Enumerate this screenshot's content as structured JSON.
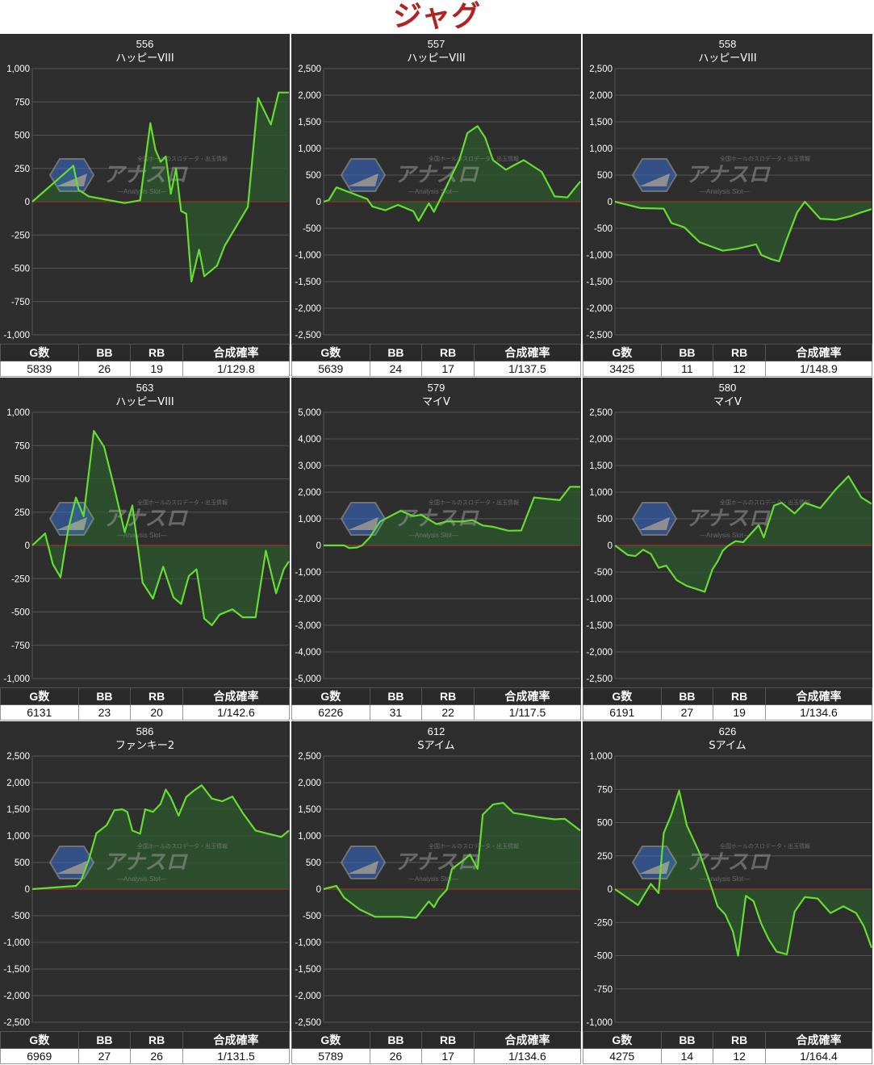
{
  "page_title": "ジャグ",
  "watermark": {
    "top": "全国ホールのスロデータ・出玉情報",
    "logo": "アナスロ",
    "sub": "—Analysis Slot—"
  },
  "colors": {
    "background": "#2e2e2e",
    "grid": "#555555",
    "line": "#66dd33",
    "fill": "#2e5a2e",
    "zero": "#cc2222",
    "title": "#b22222"
  },
  "table_headers": [
    "G数",
    "BB",
    "RB",
    "合成確率"
  ],
  "chart_data": [
    {
      "type": "line",
      "machine_no": "556",
      "model": "ハッピーVIII",
      "ylim": [
        -1000,
        1000
      ],
      "yticks": [
        1000,
        750,
        500,
        250,
        0,
        -250,
        -500,
        -750,
        -1000
      ],
      "x": [
        0,
        0.16,
        0.18,
        0.22,
        0.36,
        0.42,
        0.46,
        0.48,
        0.5,
        0.52,
        0.54,
        0.56,
        0.58,
        0.6,
        0.62,
        0.65,
        0.67,
        0.72,
        0.75,
        0.84,
        0.88,
        0.93,
        0.96,
        1.0
      ],
      "y": [
        0,
        270,
        90,
        40,
        -10,
        10,
        590,
        390,
        300,
        340,
        60,
        250,
        -70,
        -90,
        -600,
        -360,
        -560,
        -480,
        -330,
        -40,
        780,
        580,
        820,
        820
      ],
      "stats": {
        "games": "5839",
        "bb": "26",
        "rb": "19",
        "prob": "1/129.8"
      }
    },
    {
      "type": "line",
      "machine_no": "557",
      "model": "ハッピーVIII",
      "ylim": [
        -2500,
        2500
      ],
      "yticks": [
        2500,
        2000,
        1500,
        1000,
        500,
        0,
        -500,
        -1000,
        -1500,
        -2000,
        -2500
      ],
      "x": [
        0,
        0.02,
        0.05,
        0.17,
        0.19,
        0.24,
        0.29,
        0.35,
        0.37,
        0.41,
        0.43,
        0.47,
        0.53,
        0.56,
        0.6,
        0.63,
        0.66,
        0.71,
        0.74,
        0.78,
        0.85,
        0.9,
        0.95,
        1.0
      ],
      "y": [
        0,
        30,
        270,
        50,
        -90,
        -160,
        -60,
        -180,
        -360,
        -30,
        -190,
        200,
        800,
        1290,
        1420,
        1200,
        780,
        600,
        680,
        780,
        560,
        100,
        80,
        380
      ],
      "stats": {
        "games": "5639",
        "bb": "24",
        "rb": "17",
        "prob": "1/137.5"
      }
    },
    {
      "type": "line",
      "machine_no": "558",
      "model": "ハッピーVIII",
      "ylim": [
        -2500,
        2500
      ],
      "yticks": [
        2500,
        2000,
        1500,
        1000,
        500,
        0,
        -500,
        -1000,
        -1500,
        -2000,
        -2500
      ],
      "x": [
        0,
        0.1,
        0.19,
        0.22,
        0.27,
        0.33,
        0.42,
        0.48,
        0.55,
        0.57,
        0.61,
        0.64,
        0.67,
        0.68,
        0.71,
        0.74,
        0.8,
        0.86,
        0.92,
        0.96,
        1.0
      ],
      "y": [
        0,
        -120,
        -130,
        -400,
        -480,
        -760,
        -920,
        -880,
        -800,
        -1000,
        -1080,
        -1120,
        -700,
        -580,
        -200,
        0,
        -320,
        -340,
        -270,
        -200,
        -140
      ],
      "stats": {
        "games": "3425",
        "bb": "11",
        "rb": "12",
        "prob": "1/148.9"
      }
    },
    {
      "type": "line",
      "machine_no": "563",
      "model": "ハッピーVIII",
      "ylim": [
        -1000,
        1000
      ],
      "yticks": [
        1000,
        750,
        500,
        250,
        0,
        -250,
        -500,
        -750,
        -1000
      ],
      "x": [
        0,
        0.05,
        0.08,
        0.11,
        0.14,
        0.17,
        0.2,
        0.24,
        0.28,
        0.32,
        0.36,
        0.39,
        0.43,
        0.47,
        0.51,
        0.55,
        0.58,
        0.61,
        0.64,
        0.67,
        0.7,
        0.73,
        0.78,
        0.82,
        0.87,
        0.91,
        0.95,
        0.98,
        1.0
      ],
      "y": [
        0,
        90,
        -140,
        -240,
        120,
        360,
        220,
        860,
        740,
        430,
        100,
        300,
        -280,
        -400,
        -160,
        -390,
        -440,
        -230,
        -180,
        -550,
        -600,
        -520,
        -480,
        -540,
        -540,
        -40,
        -360,
        -180,
        -120
      ],
      "stats": {
        "games": "6131",
        "bb": "23",
        "rb": "20",
        "prob": "1/142.6"
      }
    },
    {
      "type": "line",
      "machine_no": "579",
      "model": "マイV",
      "ylim": [
        -5000,
        5000
      ],
      "yticks": [
        5000,
        4000,
        3000,
        2000,
        1000,
        0,
        -1000,
        -2000,
        -3000,
        -4000,
        -5000
      ],
      "x": [
        0,
        0.08,
        0.1,
        0.13,
        0.15,
        0.18,
        0.22,
        0.26,
        0.3,
        0.35,
        0.38,
        0.44,
        0.48,
        0.54,
        0.58,
        0.62,
        0.66,
        0.72,
        0.77,
        0.82,
        0.87,
        0.92,
        0.96,
        1.0
      ],
      "y": [
        0,
        0,
        -100,
        -80,
        0,
        300,
        900,
        1100,
        1300,
        1100,
        1150,
        800,
        900,
        900,
        950,
        750,
        700,
        550,
        560,
        1800,
        1750,
        1700,
        2200,
        2200
      ],
      "stats": {
        "games": "6226",
        "bb": "31",
        "rb": "22",
        "prob": "1/117.5"
      }
    },
    {
      "type": "line",
      "machine_no": "580",
      "model": "マイV",
      "ylim": [
        -2500,
        2500
      ],
      "yticks": [
        2500,
        2000,
        1500,
        1000,
        500,
        0,
        -500,
        -1000,
        -1500,
        -2000,
        -2500
      ],
      "x": [
        0,
        0.05,
        0.08,
        0.11,
        0.14,
        0.17,
        0.2,
        0.24,
        0.28,
        0.35,
        0.38,
        0.4,
        0.42,
        0.44,
        0.47,
        0.5,
        0.56,
        0.58,
        0.62,
        0.65,
        0.7,
        0.74,
        0.8,
        0.86,
        0.91,
        0.96,
        1.0
      ],
      "y": [
        0,
        -180,
        -200,
        -80,
        -160,
        -420,
        -380,
        -650,
        -760,
        -870,
        -450,
        -300,
        -100,
        -10,
        80,
        60,
        380,
        150,
        750,
        800,
        600,
        800,
        700,
        1050,
        1300,
        900,
        780
      ],
      "stats": {
        "games": "6191",
        "bb": "27",
        "rb": "19",
        "prob": "1/134.6"
      }
    },
    {
      "type": "line",
      "machine_no": "586",
      "model": "ファンキー2",
      "ylim": [
        -2500,
        2500
      ],
      "yticks": [
        2500,
        2000,
        1500,
        1000,
        500,
        0,
        -500,
        -1000,
        -1500,
        -2000,
        -2500
      ],
      "x": [
        0,
        0.17,
        0.19,
        0.22,
        0.25,
        0.29,
        0.32,
        0.35,
        0.37,
        0.39,
        0.42,
        0.44,
        0.47,
        0.5,
        0.52,
        0.54,
        0.57,
        0.6,
        0.63,
        0.66,
        0.7,
        0.74,
        0.78,
        0.82,
        0.87,
        0.91,
        0.97,
        1.0
      ],
      "y": [
        0,
        60,
        160,
        550,
        1050,
        1200,
        1480,
        1500,
        1450,
        1100,
        1040,
        1500,
        1450,
        1600,
        1870,
        1720,
        1380,
        1730,
        1850,
        1950,
        1700,
        1650,
        1740,
        1430,
        1100,
        1050,
        980,
        1100
      ],
      "stats": {
        "games": "6969",
        "bb": "27",
        "rb": "26",
        "prob": "1/131.5"
      }
    },
    {
      "type": "line",
      "machine_no": "612",
      "model": "Sアイム",
      "ylim": [
        -2500,
        2500
      ],
      "yticks": [
        2500,
        2000,
        1500,
        1000,
        500,
        0,
        -500,
        -1000,
        -1500,
        -2000,
        -2500
      ],
      "x": [
        0,
        0.05,
        0.08,
        0.14,
        0.2,
        0.3,
        0.36,
        0.41,
        0.43,
        0.45,
        0.48,
        0.5,
        0.55,
        0.57,
        0.6,
        0.62,
        0.66,
        0.7,
        0.74,
        0.78,
        0.84,
        0.9,
        0.94,
        1.0
      ],
      "y": [
        0,
        60,
        -160,
        -380,
        -520,
        -520,
        -540,
        -230,
        -340,
        -170,
        -10,
        380,
        560,
        650,
        380,
        1400,
        1590,
        1620,
        1430,
        1400,
        1350,
        1310,
        1320,
        1100
      ],
      "stats": {
        "games": "5789",
        "bb": "26",
        "rb": "17",
        "prob": "1/134.6"
      }
    },
    {
      "type": "line",
      "machine_no": "626",
      "model": "Sアイム",
      "ylim": [
        -1000,
        1000
      ],
      "yticks": [
        1000,
        750,
        500,
        250,
        0,
        -250,
        -500,
        -750,
        -1000
      ],
      "x": [
        0,
        0.09,
        0.14,
        0.17,
        0.19,
        0.22,
        0.25,
        0.28,
        0.33,
        0.37,
        0.4,
        0.43,
        0.46,
        0.48,
        0.51,
        0.54,
        0.57,
        0.6,
        0.63,
        0.67,
        0.7,
        0.74,
        0.79,
        0.84,
        0.89,
        0.94,
        0.97,
        1.0
      ],
      "y": [
        0,
        -120,
        40,
        -30,
        420,
        560,
        740,
        480,
        270,
        50,
        -130,
        -190,
        -320,
        -500,
        -50,
        -90,
        -260,
        -380,
        -470,
        -490,
        -170,
        -60,
        -70,
        -180,
        -130,
        -180,
        -280,
        -440
      ],
      "stats": {
        "games": "4275",
        "bb": "14",
        "rb": "12",
        "prob": "1/164.4"
      }
    }
  ]
}
